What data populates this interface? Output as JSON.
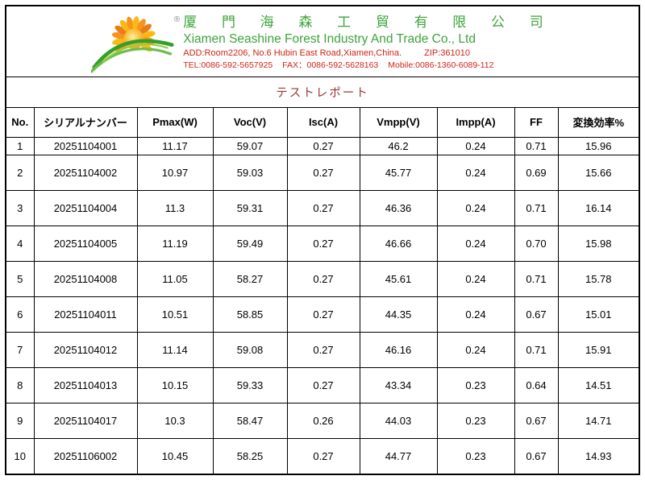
{
  "header": {
    "registered_mark": "®",
    "company_name_cn": "厦 門 海 森 工 貿 有 限 公 司",
    "company_name_en": "Xiamen Seashine Forest Industry And Trade Co., Ltd",
    "address": "ADD:Room2206, No.6 Hubin East Road,Xiamen,China.",
    "zip": "ZIP:361010",
    "tel": "TEL:0086-592-5657925",
    "fax": "FAX：0086-592-5628163",
    "mobile": "Mobile:0086-1360-6089-112",
    "logo_icon": "sun-over-green-swoosh"
  },
  "report": {
    "title": "テストレポート"
  },
  "table": {
    "columns": [
      "No.",
      "シリアルナンバー",
      "Pmax(W)",
      "Voc(V)",
      "Isc(A)",
      "Vmpp(V)",
      "Impp(A)",
      "FF",
      "変換効率%"
    ],
    "rows": [
      [
        "1",
        "20251104001",
        "11.17",
        "59.07",
        "0.27",
        "46.2",
        "0.24",
        "0.71",
        "15.96"
      ],
      [
        "2",
        "20251104002",
        "10.97",
        "59.03",
        "0.27",
        "45.77",
        "0.24",
        "0.69",
        "15.66"
      ],
      [
        "3",
        "20251104004",
        "11.3",
        "59.31",
        "0.27",
        "46.36",
        "0.24",
        "0.71",
        "16.14"
      ],
      [
        "4",
        "20251104005",
        "11.19",
        "59.49",
        "0.27",
        "46.66",
        "0.24",
        "0.70",
        "15.98"
      ],
      [
        "5",
        "20251104008",
        "11.05",
        "58.27",
        "0.27",
        "45.61",
        "0.24",
        "0.71",
        "15.78"
      ],
      [
        "6",
        "20251104011",
        "10.51",
        "58.85",
        "0.27",
        "44.35",
        "0.24",
        "0.67",
        "15.01"
      ],
      [
        "7",
        "20251104012",
        "11.14",
        "59.08",
        "0.27",
        "46.16",
        "0.24",
        "0.71",
        "15.91"
      ],
      [
        "8",
        "20251104013",
        "10.15",
        "59.33",
        "0.27",
        "43.34",
        "0.23",
        "0.64",
        "14.51"
      ],
      [
        "9",
        "20251104017",
        "10.3",
        "58.47",
        "0.26",
        "44.03",
        "0.23",
        "0.67",
        "14.71"
      ],
      [
        "10",
        "20251106002",
        "10.45",
        "58.25",
        "0.27",
        "44.77",
        "0.23",
        "0.67",
        "14.93"
      ]
    ]
  },
  "colors": {
    "company_name": "#3FA33C",
    "contact": "#CE2417",
    "title": "#953735",
    "sun": "#F7941D",
    "sun_light": "#FDB813",
    "swoosh_dark": "#33A02C",
    "swoosh_mid": "#6ABF4B",
    "swoosh_light": "#9BCB3C",
    "border": "#000000"
  }
}
